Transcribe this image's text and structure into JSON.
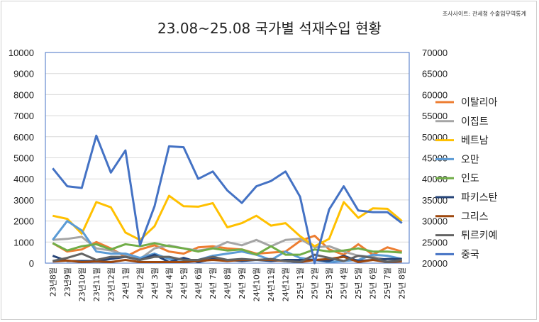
{
  "source_note": "조사사이트: 관세청 수출입무역통계",
  "chart_data": {
    "type": "line",
    "title": "23.08~25.08 국가별 석재수입 현황",
    "xlabel": "",
    "ylabel": "",
    "ylim": [
      0,
      10000
    ],
    "y2lim": [
      20000,
      70000
    ],
    "yticks": [
      "0",
      "1000",
      "2000",
      "3000",
      "4000",
      "5000",
      "6000",
      "7000",
      "8000",
      "9000",
      "10000"
    ],
    "y2ticks": [
      "20000",
      "25000",
      "30000",
      "35000",
      "40000",
      "45000",
      "50000",
      "55000",
      "60000",
      "65000",
      "70000"
    ],
    "grid": true,
    "legend": "right",
    "categories": [
      "23년8월",
      "23년9월",
      "23년10월",
      "23년11월",
      "23년12월",
      "24년 1월",
      "24년 2월",
      "24년 3월",
      "24년 4월",
      "24년 5월",
      "24년 6월",
      "24년 7월",
      "24년 8월",
      "24년 9월",
      "24년10월",
      "24년11월",
      "24년12월",
      "25년 1월",
      "25년 2월",
      "25년 3월",
      "25년 4월",
      "25년 5월",
      "25년 6월",
      "25년 7월",
      "25년 8월"
    ],
    "series": [
      {
        "name": "이탈리아",
        "color": "#ED7D31",
        "axis": "left",
        "values": [
          950,
          550,
          650,
          1000,
          700,
          300,
          650,
          850,
          550,
          450,
          750,
          800,
          700,
          650,
          450,
          500,
          550,
          1050,
          1300,
          650,
          400,
          900,
          400,
          750,
          550
        ]
      },
      {
        "name": "이집트",
        "color": "#A5A5A5",
        "axis": "left",
        "values": [
          1100,
          1150,
          1250,
          700,
          600,
          400,
          200,
          700,
          850,
          700,
          600,
          700,
          1000,
          850,
          1100,
          800,
          1100,
          1150,
          750,
          800,
          550,
          350,
          300,
          150,
          100
        ]
      },
      {
        "name": "베트남",
        "color": "#FFC000",
        "axis": "left",
        "values": [
          2250,
          2100,
          1400,
          2900,
          2650,
          1450,
          1100,
          1750,
          3200,
          2700,
          2680,
          2850,
          1700,
          1900,
          2250,
          1780,
          1900,
          1280,
          800,
          1150,
          2900,
          2150,
          2600,
          2580,
          2000
        ]
      },
      {
        "name": "오만",
        "color": "#5B9BD5",
        "axis": "left",
        "values": [
          1100,
          2000,
          1550,
          550,
          450,
          450,
          250,
          450,
          200,
          150,
          150,
          350,
          450,
          550,
          400,
          150,
          550,
          250,
          150,
          50,
          100,
          150,
          400,
          350,
          200
        ]
      },
      {
        "name": "인도",
        "color": "#70AD47",
        "axis": "left",
        "values": [
          950,
          600,
          800,
          900,
          650,
          900,
          800,
          950,
          800,
          700,
          550,
          700,
          600,
          650,
          400,
          800,
          400,
          400,
          650,
          550,
          600,
          700,
          550,
          550,
          500
        ]
      },
      {
        "name": "파키스탄",
        "color": "#264478",
        "axis": "left",
        "values": [
          350,
          100,
          100,
          100,
          200,
          300,
          150,
          400,
          50,
          250,
          50,
          200,
          150,
          100,
          150,
          100,
          150,
          150,
          150,
          100,
          350,
          100,
          150,
          200,
          200
        ]
      },
      {
        "name": "그리스",
        "color": "#9E480E",
        "axis": "left",
        "values": [
          80,
          120,
          50,
          80,
          50,
          150,
          50,
          50,
          50,
          50,
          100,
          150,
          100,
          150,
          150,
          150,
          100,
          50,
          150,
          200,
          300,
          50,
          150,
          50,
          80
        ]
      },
      {
        "name": "튀르키예",
        "color": "#636363",
        "axis": "left",
        "values": [
          100,
          250,
          450,
          150,
          300,
          300,
          150,
          300,
          300,
          150,
          150,
          300,
          150,
          200,
          150,
          200,
          100,
          50,
          400,
          250,
          100,
          350,
          250,
          50,
          150
        ]
      },
      {
        "name": "중국",
        "color": "#4472C4",
        "axis": "right",
        "values": [
          42500,
          38250,
          37850,
          50250,
          41500,
          46750,
          24250,
          33500,
          47750,
          47500,
          40000,
          41750,
          37250,
          34300,
          38250,
          39500,
          41750,
          35750,
          20000,
          32750,
          38250,
          32500,
          32100,
          32100,
          29500
        ]
      }
    ]
  }
}
